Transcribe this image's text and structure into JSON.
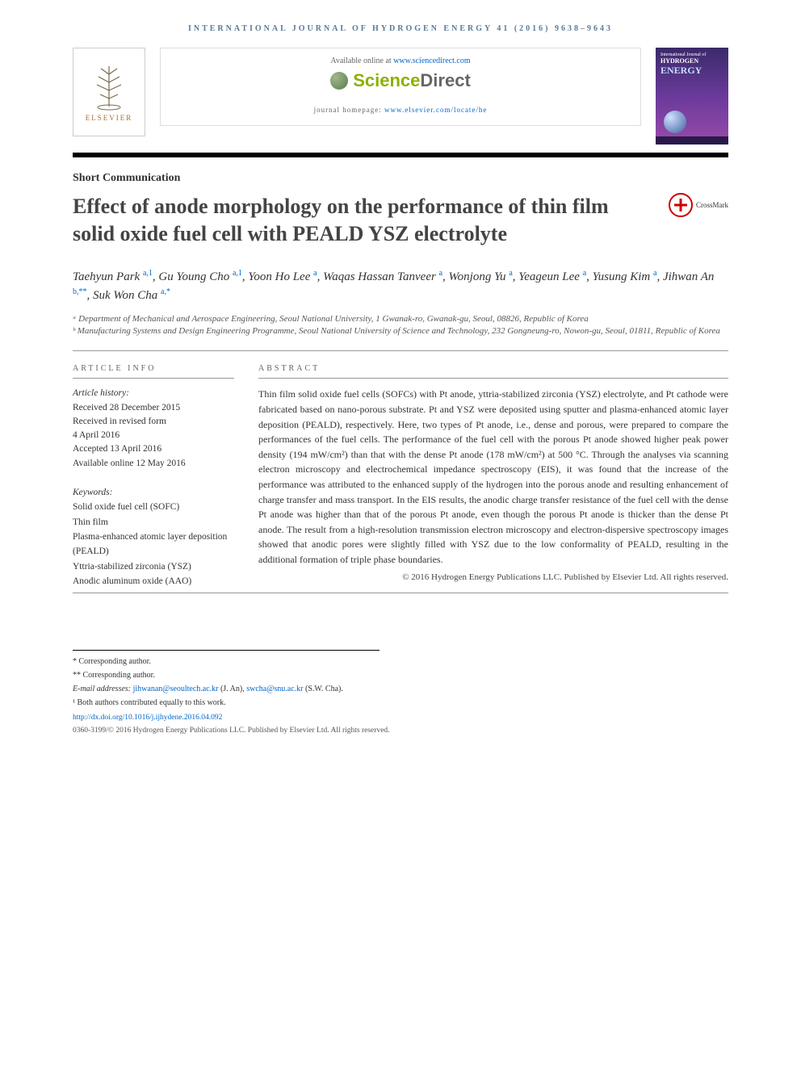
{
  "journal_header": "INTERNATIONAL JOURNAL OF HYDROGEN ENERGY 41 (2016) 9638–9643",
  "available": {
    "prefix": "Available online at ",
    "link": "www.sciencedirect.com"
  },
  "sd_logo": {
    "sci": "Science",
    "dir": "Direct"
  },
  "homepage": {
    "prefix": "journal homepage: ",
    "link": "www.elsevier.com/locate/he"
  },
  "elsevier": "ELSEVIER",
  "cover": {
    "line1": "International Journal of",
    "line2": "HYDROGEN",
    "line3": "ENERGY"
  },
  "article_type": "Short Communication",
  "title": "Effect of anode morphology on the performance of thin film solid oxide fuel cell with PEALD YSZ electrolyte",
  "crossmark": "CrossMark",
  "authors_html": "Taehyun Park <sup class=\"sup-link\">a,1</sup>, Gu Young Cho <sup class=\"sup-link\">a,1</sup>, Yoon Ho Lee <sup class=\"sup-link\">a</sup>, Waqas Hassan Tanveer <sup class=\"sup-link\">a</sup>, Wonjong Yu <sup class=\"sup-link\">a</sup>, Yeageun Lee <sup class=\"sup-link\">a</sup>, Yusung Kim <sup class=\"sup-link\">a</sup>, Jihwan An <sup class=\"sup-link\">b,**</sup>, Suk Won Cha <sup class=\"sup-link\">a,*</sup>",
  "affiliations": [
    "ᵃ Department of Mechanical and Aerospace Engineering, Seoul National University, 1 Gwanak-ro, Gwanak-gu, Seoul, 08826, Republic of Korea",
    "ᵇ Manufacturing Systems and Design Engineering Programme, Seoul National University of Science and Technology, 232 Gongneung-ro, Nowon-gu, Seoul, 01811, Republic of Korea"
  ],
  "article_info_head": "ARTICLE INFO",
  "abstract_head": "ABSTRACT",
  "history": {
    "label": "Article history:",
    "lines": [
      "Received 28 December 2015",
      "Received in revised form",
      "4 April 2016",
      "Accepted 13 April 2016",
      "Available online 12 May 2016"
    ]
  },
  "keywords": {
    "label": "Keywords:",
    "items": [
      "Solid oxide fuel cell (SOFC)",
      "Thin film",
      "Plasma-enhanced atomic layer deposition (PEALD)",
      "Yttria-stabilized zirconia (YSZ)",
      "Anodic aluminum oxide (AAO)"
    ]
  },
  "abstract": "Thin film solid oxide fuel cells (SOFCs) with Pt anode, yttria-stabilized zirconia (YSZ) electrolyte, and Pt cathode were fabricated based on nano-porous substrate. Pt and YSZ were deposited using sputter and plasma-enhanced atomic layer deposition (PEALD), respectively. Here, two types of Pt anode, i.e., dense and porous, were prepared to compare the performances of the fuel cells. The performance of the fuel cell with the porous Pt anode showed higher peak power density (194 mW/cm²) than that with the dense Pt anode (178 mW/cm²) at 500 °C. Through the analyses via scanning electron microscopy and electrochemical impedance spectroscopy (EIS), it was found that the increase of the performance was attributed to the enhanced supply of the hydrogen into the porous anode and resulting enhancement of charge transfer and mass transport. In the EIS results, the anodic charge transfer resistance of the fuel cell with the dense Pt anode was higher than that of the porous Pt anode, even though the porous Pt anode is thicker than the dense Pt anode. The result from a high-resolution transmission electron microscopy and electron-dispersive spectroscopy images showed that anodic pores were slightly filled with YSZ due to the low conformality of PEALD, resulting in the additional formation of triple phase boundaries.",
  "copyright_line": "© 2016 Hydrogen Energy Publications LLC. Published by Elsevier Ltd. All rights reserved.",
  "footnotes": {
    "corr1": "* Corresponding author.",
    "corr2": "** Corresponding author.",
    "email_prefix": "E-mail addresses: ",
    "email1": "jihwanan@seoultech.ac.kr",
    "email1_suffix": " (J. An), ",
    "email2": "swcha@snu.ac.kr",
    "email2_suffix": " (S.W. Cha).",
    "equal": "¹ Both authors contributed equally to this work."
  },
  "doi": "http://dx.doi.org/10.1016/j.ijhydene.2016.04.092",
  "issn_line": "0360-3199/© 2016 Hydrogen Energy Publications LLC. Published by Elsevier Ltd. All rights reserved.",
  "colors": {
    "header_blue": "#5b7a9a",
    "link_blue": "#0066cc",
    "sd_green": "#8db000",
    "elsevier_orange": "#a86c2e"
  }
}
